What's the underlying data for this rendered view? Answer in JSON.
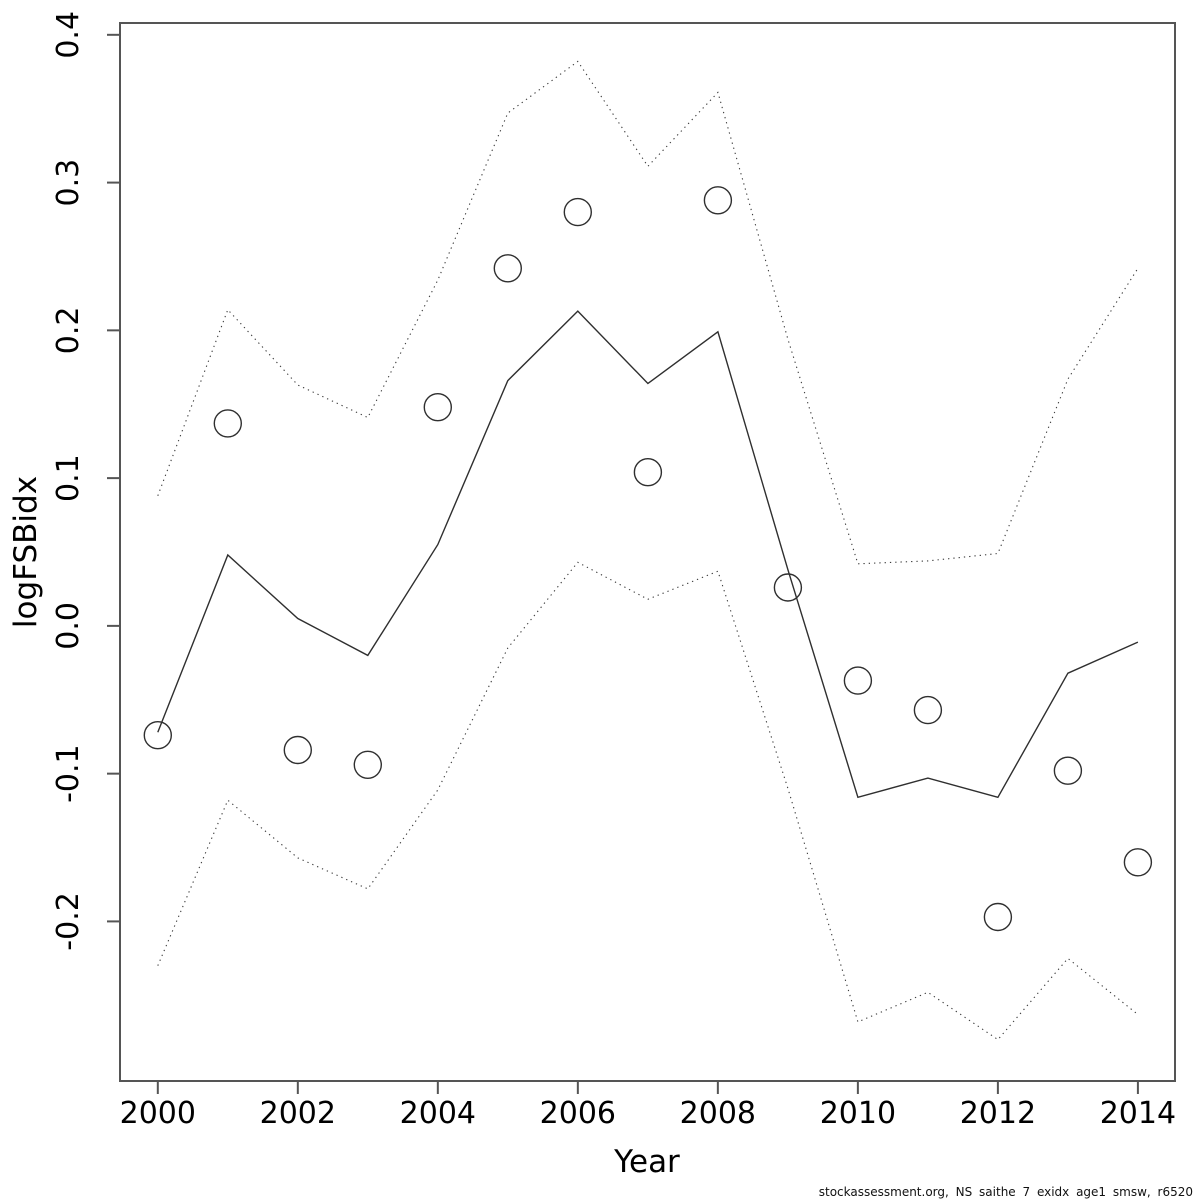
{
  "chart_data": {
    "type": "line",
    "title": "",
    "xlabel": "Year",
    "ylabel": "logFSBidx",
    "caption": "stockassessment.org, NS saithe 7 exidx age1 smsw, r6520",
    "x": [
      2000,
      2001,
      2002,
      2003,
      2004,
      2005,
      2006,
      2007,
      2008,
      2009,
      2010,
      2011,
      2012,
      2013,
      2014
    ],
    "x_tick_labels": [
      "2000",
      "2002",
      "2004",
      "2006",
      "2008",
      "2010",
      "2012",
      "2014"
    ],
    "x_tick_values": [
      2000,
      2002,
      2004,
      2006,
      2008,
      2010,
      2012,
      2014
    ],
    "y_tick_labels": [
      "-0.2",
      "-0.1",
      "0.0",
      "0.1",
      "0.2",
      "0.3",
      "0.4"
    ],
    "y_tick_values": [
      -0.2,
      -0.1,
      0.0,
      0.1,
      0.2,
      0.3,
      0.4
    ],
    "xlim": [
      1999.46,
      2014.53
    ],
    "ylim": [
      -0.308,
      0.408
    ],
    "grid": false,
    "legend": null,
    "series": [
      {
        "name": "observed-index",
        "style": "points-open-circle",
        "values": [
          -0.074,
          0.137,
          -0.084,
          -0.094,
          0.148,
          0.242,
          0.28,
          0.104,
          0.288,
          0.026,
          -0.037,
          -0.057,
          -0.197,
          -0.098,
          -0.16
        ]
      },
      {
        "name": "fitted-line",
        "style": "solid-line",
        "values": [
          -0.072,
          0.048,
          0.005,
          -0.02,
          0.055,
          0.166,
          0.213,
          0.164,
          0.199,
          0.038,
          -0.116,
          -0.103,
          -0.116,
          -0.032,
          -0.011
        ]
      },
      {
        "name": "ci-upper",
        "style": "dotted-line",
        "values": [
          0.088,
          0.214,
          0.163,
          0.141,
          0.234,
          0.347,
          0.382,
          0.311,
          0.361,
          0.194,
          0.042,
          0.044,
          0.049,
          0.167,
          0.242
        ]
      },
      {
        "name": "ci-lower",
        "style": "dotted-line",
        "values": [
          -0.23,
          -0.118,
          -0.157,
          -0.178,
          -0.111,
          -0.015,
          0.043,
          0.018,
          0.037,
          -0.11,
          -0.268,
          -0.248,
          -0.28,
          -0.225,
          -0.263
        ]
      }
    ],
    "colors": {
      "data_line": "#2f2f2f",
      "ci_line": "#3c3c3c",
      "box": "#555555",
      "text": "#000000",
      "background": "#ffffff"
    }
  }
}
